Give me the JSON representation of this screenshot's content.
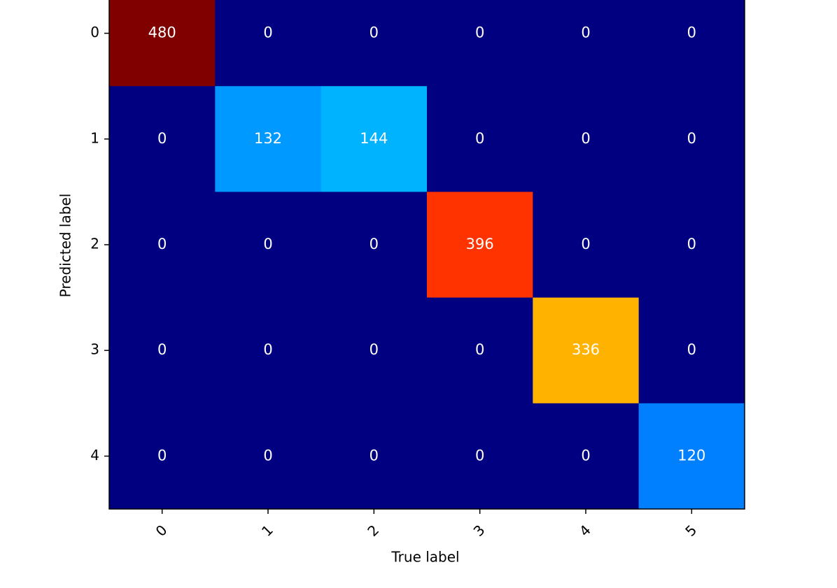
{
  "chart_data": {
    "type": "heatmap",
    "x_label": "True label",
    "y_label": "Predicted label",
    "x_categories": [
      "0",
      "1",
      "2",
      "3",
      "4",
      "5"
    ],
    "y_categories": [
      "0",
      "1",
      "2",
      "3",
      "4"
    ],
    "values": [
      [
        480,
        0,
        0,
        0,
        0,
        0
      ],
      [
        0,
        132,
        144,
        0,
        0,
        0
      ],
      [
        0,
        0,
        0,
        396,
        0,
        0
      ],
      [
        0,
        0,
        0,
        0,
        336,
        0
      ],
      [
        0,
        0,
        0,
        0,
        0,
        120
      ]
    ],
    "colormap": "jet"
  }
}
